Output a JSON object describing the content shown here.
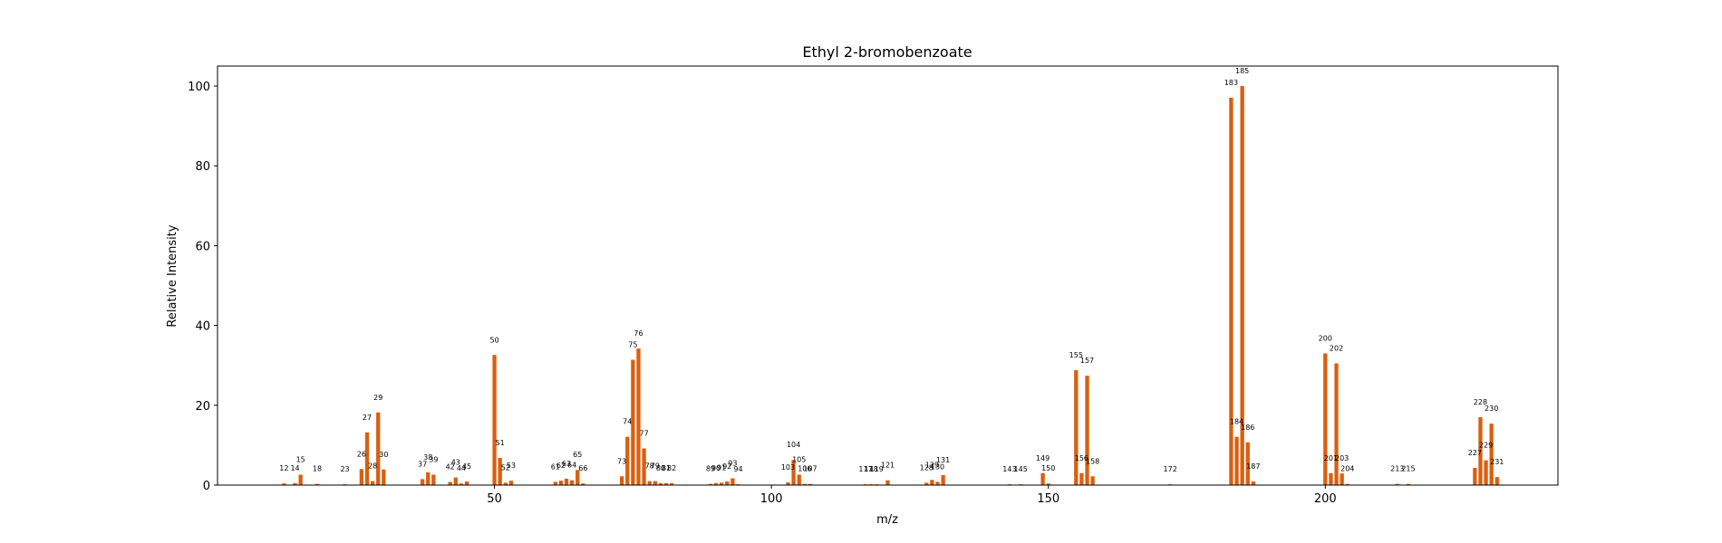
{
  "chart_data": {
    "type": "bar",
    "title": "Ethyl 2-bromobenzoate",
    "xlabel": "m/z",
    "ylabel": "Relative Intensity",
    "xlim": [
      0,
      242
    ],
    "ylim": [
      0,
      105
    ],
    "xticks": [
      50,
      100,
      150,
      200
    ],
    "yticks": [
      0,
      20,
      40,
      60,
      80,
      100
    ],
    "grid": false,
    "bar_color": "#d95f0e",
    "peaks": [
      {
        "mz": 12,
        "intensity": 0.4
      },
      {
        "mz": 14,
        "intensity": 0.5
      },
      {
        "mz": 15,
        "intensity": 2.6
      },
      {
        "mz": 18,
        "intensity": 0.3
      },
      {
        "mz": 23,
        "intensity": 0.2
      },
      {
        "mz": 26,
        "intensity": 4.0
      },
      {
        "mz": 27,
        "intensity": 13.2
      },
      {
        "mz": 28,
        "intensity": 1.0
      },
      {
        "mz": 29,
        "intensity": 18.2
      },
      {
        "mz": 30,
        "intensity": 3.9
      },
      {
        "mz": 37,
        "intensity": 1.5
      },
      {
        "mz": 38,
        "intensity": 3.2
      },
      {
        "mz": 39,
        "intensity": 2.6
      },
      {
        "mz": 42,
        "intensity": 0.8
      },
      {
        "mz": 43,
        "intensity": 1.9
      },
      {
        "mz": 44,
        "intensity": 0.4
      },
      {
        "mz": 45,
        "intensity": 0.9
      },
      {
        "mz": 50,
        "intensity": 32.6
      },
      {
        "mz": 51,
        "intensity": 6.8
      },
      {
        "mz": 52,
        "intensity": 0.6
      },
      {
        "mz": 53,
        "intensity": 1.1
      },
      {
        "mz": 61,
        "intensity": 0.8
      },
      {
        "mz": 62,
        "intensity": 1.1
      },
      {
        "mz": 63,
        "intensity": 1.6
      },
      {
        "mz": 64,
        "intensity": 1.2
      },
      {
        "mz": 65,
        "intensity": 3.8
      },
      {
        "mz": 66,
        "intensity": 0.4
      },
      {
        "mz": 73,
        "intensity": 2.2
      },
      {
        "mz": 74,
        "intensity": 12.1
      },
      {
        "mz": 75,
        "intensity": 31.4
      },
      {
        "mz": 76,
        "intensity": 34.2
      },
      {
        "mz": 77,
        "intensity": 9.2
      },
      {
        "mz": 78,
        "intensity": 1.0
      },
      {
        "mz": 79,
        "intensity": 1.0
      },
      {
        "mz": 80,
        "intensity": 0.5
      },
      {
        "mz": 81,
        "intensity": 0.5
      },
      {
        "mz": 82,
        "intensity": 0.5
      },
      {
        "mz": 89,
        "intensity": 0.3
      },
      {
        "mz": 90,
        "intensity": 0.5
      },
      {
        "mz": 91,
        "intensity": 0.6
      },
      {
        "mz": 92,
        "intensity": 0.9
      },
      {
        "mz": 93,
        "intensity": 1.7
      },
      {
        "mz": 94,
        "intensity": 0.2
      },
      {
        "mz": 103,
        "intensity": 0.7
      },
      {
        "mz": 104,
        "intensity": 6.3
      },
      {
        "mz": 105,
        "intensity": 2.6
      },
      {
        "mz": 106,
        "intensity": 0.3
      },
      {
        "mz": 107,
        "intensity": 0.3
      },
      {
        "mz": 117,
        "intensity": 0.2
      },
      {
        "mz": 118,
        "intensity": 0.2
      },
      {
        "mz": 119,
        "intensity": 0.2
      },
      {
        "mz": 121,
        "intensity": 1.2
      },
      {
        "mz": 128,
        "intensity": 0.6
      },
      {
        "mz": 129,
        "intensity": 1.3
      },
      {
        "mz": 130,
        "intensity": 0.8
      },
      {
        "mz": 131,
        "intensity": 2.5
      },
      {
        "mz": 143,
        "intensity": 0.2
      },
      {
        "mz": 145,
        "intensity": 0.2
      },
      {
        "mz": 149,
        "intensity": 3.0
      },
      {
        "mz": 150,
        "intensity": 0.4
      },
      {
        "mz": 155,
        "intensity": 28.8
      },
      {
        "mz": 156,
        "intensity": 3.0
      },
      {
        "mz": 157,
        "intensity": 27.4
      },
      {
        "mz": 158,
        "intensity": 2.2
      },
      {
        "mz": 172,
        "intensity": 0.2
      },
      {
        "mz": 183,
        "intensity": 97.1
      },
      {
        "mz": 184,
        "intensity": 12.1
      },
      {
        "mz": 185,
        "intensity": 100.0
      },
      {
        "mz": 186,
        "intensity": 10.7
      },
      {
        "mz": 187,
        "intensity": 0.9
      },
      {
        "mz": 200,
        "intensity": 33.0
      },
      {
        "mz": 201,
        "intensity": 3.0
      },
      {
        "mz": 202,
        "intensity": 30.5
      },
      {
        "mz": 203,
        "intensity": 2.9
      },
      {
        "mz": 204,
        "intensity": 0.3
      },
      {
        "mz": 213,
        "intensity": 0.3
      },
      {
        "mz": 215,
        "intensity": 0.3
      },
      {
        "mz": 227,
        "intensity": 4.3
      },
      {
        "mz": 228,
        "intensity": 17.0
      },
      {
        "mz": 229,
        "intensity": 6.2
      },
      {
        "mz": 230,
        "intensity": 15.4
      },
      {
        "mz": 231,
        "intensity": 2.0
      }
    ]
  }
}
